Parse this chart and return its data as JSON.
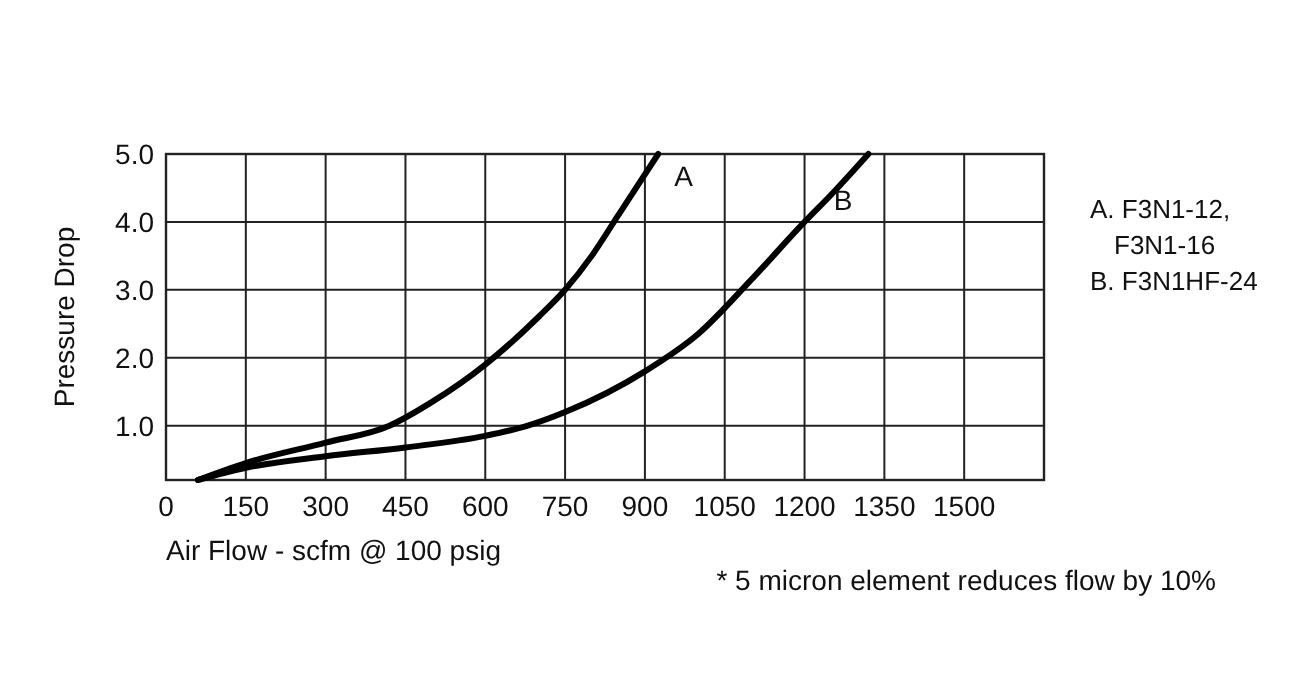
{
  "chart_data": {
    "type": "line",
    "xlabel": "Air Flow - scfm @ 100 psig",
    "ylabel": "Pressure Drop",
    "xlim": [
      0,
      1650
    ],
    "xticks": [
      0,
      150,
      300,
      450,
      600,
      750,
      900,
      1050,
      1200,
      1350,
      1500
    ],
    "ylim": [
      0.2,
      5.0
    ],
    "yticks": [
      {
        "value": 1,
        "label": "1.0"
      },
      {
        "value": 2,
        "label": "2.0"
      },
      {
        "value": 3,
        "label": "3.0"
      },
      {
        "value": 4,
        "label": "4.0"
      },
      {
        "value": 5,
        "label": "5.0"
      }
    ],
    "grid": true,
    "marker": "none",
    "line_style": "solid",
    "series": [
      {
        "name": "A",
        "color": "#000000",
        "x": [
          60,
          150,
          300,
          420,
          500,
          600,
          700,
          750,
          800,
          850,
          900,
          925
        ],
        "values": [
          0.2,
          0.45,
          0.75,
          1.0,
          1.35,
          1.9,
          2.6,
          3.0,
          3.5,
          4.1,
          4.7,
          5.0
        ]
      },
      {
        "name": "B",
        "color": "#000000",
        "x": [
          60,
          150,
          300,
          450,
          600,
          680,
          750,
          900,
          1000,
          1100,
          1200,
          1250,
          1320
        ],
        "values": [
          0.2,
          0.38,
          0.55,
          0.68,
          0.85,
          1.0,
          1.2,
          1.8,
          2.35,
          3.15,
          4.0,
          4.4,
          5.0
        ]
      }
    ],
    "annotations": [
      "A. F3N1-12,",
      "F3N1-16",
      "B. F3N1HF-24",
      "* 5 micron element reduces flow by 10%"
    ]
  }
}
